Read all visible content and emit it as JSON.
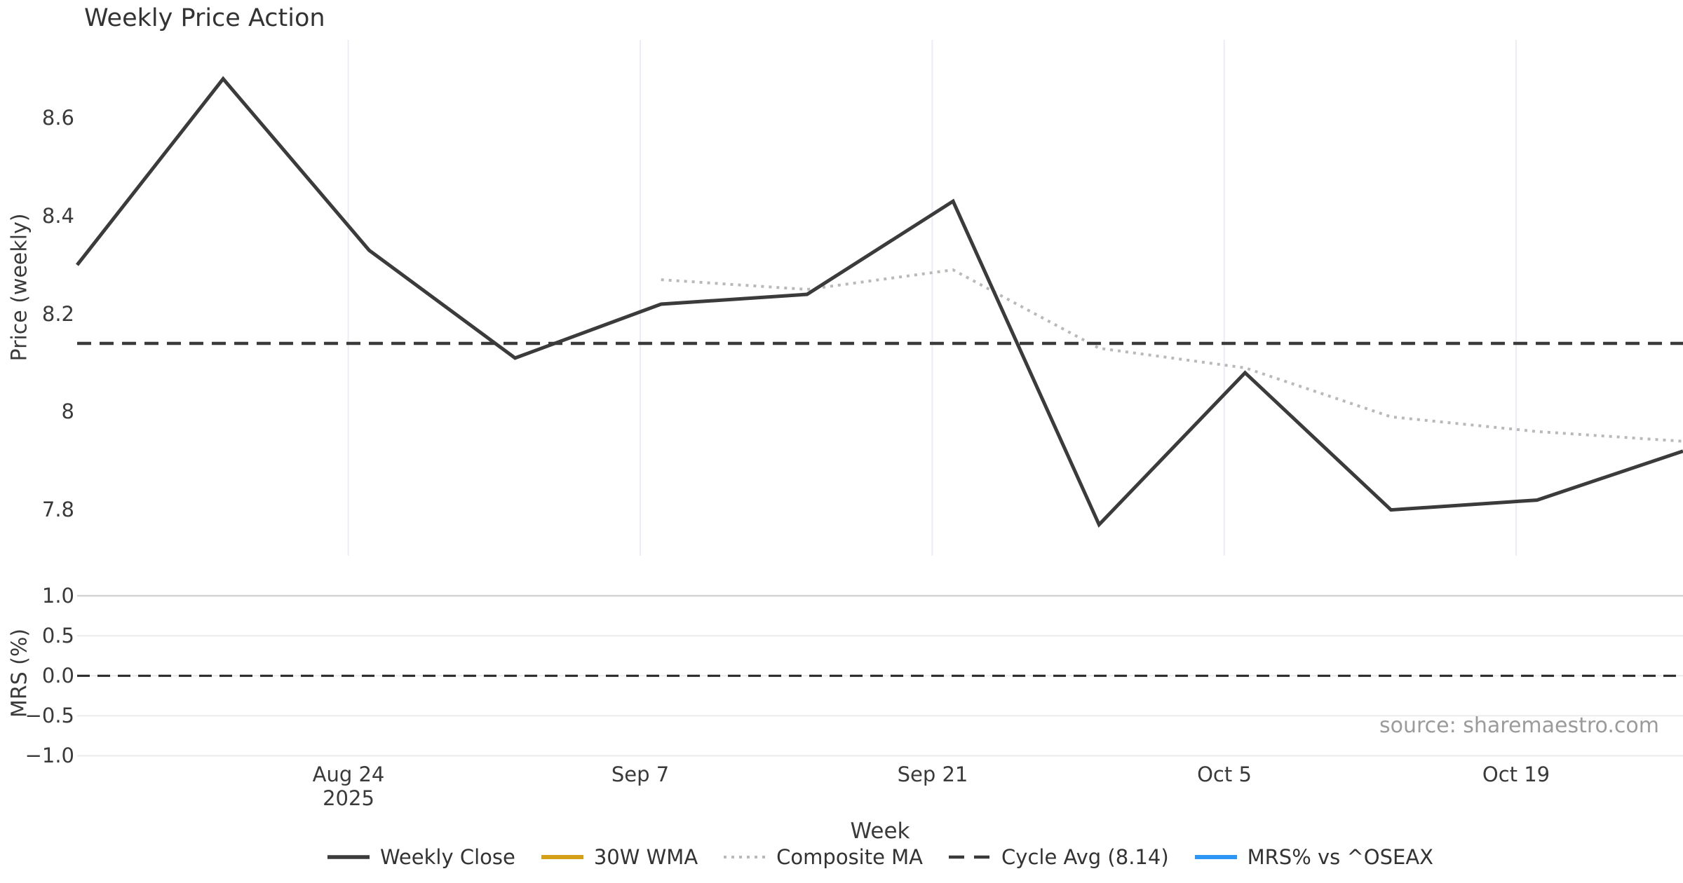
{
  "title": "Weekly Price Action",
  "source_text": "source: sharemaestro.com",
  "chart_data": {
    "type": "line",
    "xlabel": "Week",
    "x_range": [
      "2025-08-11",
      "2025-10-27"
    ],
    "x_frequency": "weekly",
    "grid": {
      "price_panel": "vertical-only",
      "mrs_panel": "horizontal-only"
    },
    "xticks": [
      {
        "label": "Aug 24",
        "label2": "2025",
        "date": "2025-08-24"
      },
      {
        "label": "Sep 7",
        "date": "2025-09-07"
      },
      {
        "label": "Sep 21",
        "date": "2025-09-21"
      },
      {
        "label": "Oct 5",
        "date": "2025-10-05"
      },
      {
        "label": "Oct 19",
        "date": "2025-10-19"
      }
    ],
    "panels": [
      {
        "name": "price",
        "ylabel": "Price (weekly)",
        "ylim": [
          7.71,
          8.76
        ],
        "yticks": [
          {
            "value": 8.6,
            "label": "8.6"
          },
          {
            "value": 8.4,
            "label": "8.4"
          },
          {
            "value": 8.2,
            "label": "8.2"
          },
          {
            "value": 8.0,
            "label": "8"
          },
          {
            "value": 7.8,
            "label": "7.8"
          }
        ],
        "series": [
          {
            "name": "Weekly Close",
            "color": "#3b3b3b",
            "style": "solid",
            "width": 5,
            "x": [
              "2025-08-11",
              "2025-08-18",
              "2025-08-25",
              "2025-09-01",
              "2025-09-08",
              "2025-09-15",
              "2025-09-22",
              "2025-09-29",
              "2025-10-06",
              "2025-10-13",
              "2025-10-20",
              "2025-10-27"
            ],
            "values": [
              8.3,
              8.68,
              8.33,
              8.11,
              8.22,
              8.24,
              8.43,
              7.77,
              8.08,
              7.8,
              7.82,
              7.92
            ]
          },
          {
            "name": "30W WMA",
            "color": "#d4a017",
            "style": "solid",
            "width": 5,
            "x": [],
            "values": [],
            "note": "in legend only; no points visible in plotted range"
          },
          {
            "name": "Composite MA",
            "color": "#b9b9b9",
            "style": "dotted",
            "width": 4,
            "x": [
              "2025-09-08",
              "2025-09-15",
              "2025-09-22",
              "2025-09-29",
              "2025-10-06",
              "2025-10-13",
              "2025-10-20",
              "2025-10-27"
            ],
            "values": [
              8.27,
              8.25,
              8.29,
              8.13,
              8.09,
              7.99,
              7.96,
              7.94
            ]
          },
          {
            "name": "Cycle Avg (8.14)",
            "color": "#3a3a3a",
            "style": "dashed",
            "width": 4.5,
            "kind": "hline",
            "value": 8.14
          }
        ]
      },
      {
        "name": "mrs",
        "ylabel": "MRS (%)",
        "ylim": [
          -1.06,
          1.16
        ],
        "yticks": [
          {
            "value": 1.0,
            "label": "1.0"
          },
          {
            "value": 0.5,
            "label": "0.5"
          },
          {
            "value": 0.0,
            "label": "0.0"
          },
          {
            "value": -0.5,
            "label": "−0.5"
          },
          {
            "value": -1.0,
            "label": "−1.0"
          }
        ],
        "series": [
          {
            "name": "MRS% vs ^OSEAX",
            "color": "#2e96f5",
            "style": "solid",
            "width": 6,
            "x": [],
            "values": [],
            "note": "in legend only; no points visible in plotted range"
          },
          {
            "name": "zero-line",
            "color": "#2b2b2b",
            "style": "dashed",
            "width": 3.2,
            "kind": "hline",
            "value": 0.0
          }
        ]
      }
    ]
  },
  "legend": {
    "items": [
      {
        "label": "Weekly Close",
        "color": "#3b3b3b",
        "style": "solid"
      },
      {
        "label": "30W WMA",
        "color": "#d4a017",
        "style": "solid"
      },
      {
        "label": "Composite MA",
        "color": "#b9b9b9",
        "style": "dotted"
      },
      {
        "label": "Cycle Avg (8.14)",
        "color": "#3a3a3a",
        "style": "dashed"
      },
      {
        "label": "MRS% vs ^OSEAX",
        "color": "#2e96f5",
        "style": "solid"
      }
    ]
  }
}
